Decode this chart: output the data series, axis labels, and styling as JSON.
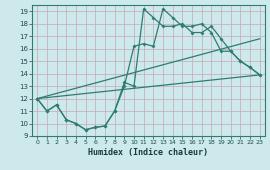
{
  "xlabel": "Humidex (Indice chaleur)",
  "bg_color": "#cee9ec",
  "grid_color": "#b8d8dc",
  "line_color": "#2e7d72",
  "xlim": [
    -0.5,
    23.5
  ],
  "ylim": [
    9,
    19.5
  ],
  "yticks": [
    9,
    10,
    11,
    12,
    13,
    14,
    15,
    16,
    17,
    18,
    19
  ],
  "xticks": [
    0,
    1,
    2,
    3,
    4,
    5,
    6,
    7,
    8,
    9,
    10,
    11,
    12,
    13,
    14,
    15,
    16,
    17,
    18,
    19,
    20,
    21,
    22,
    23
  ],
  "series1_x": [
    0,
    1,
    2,
    3,
    4,
    5,
    6,
    7,
    8,
    9,
    10,
    11,
    12,
    13,
    14,
    15,
    16,
    17,
    18,
    19,
    20,
    21,
    22,
    23
  ],
  "series1_y": [
    12,
    11,
    11.5,
    10.3,
    10,
    9.5,
    9.7,
    9.8,
    11,
    13,
    16.2,
    16.4,
    16.2,
    19.2,
    18.5,
    17.8,
    17.8,
    18.0,
    17.3,
    15.8,
    15.8,
    15.0,
    14.5,
    13.9
  ],
  "series2_x": [
    0,
    1,
    2,
    3,
    4,
    5,
    6,
    7,
    8,
    9,
    10,
    11,
    12,
    13,
    14,
    15,
    16,
    17,
    18,
    19,
    20,
    21,
    22,
    23
  ],
  "series2_y": [
    12,
    11,
    11.5,
    10.3,
    10,
    9.5,
    9.7,
    9.8,
    11,
    13.3,
    13.0,
    19.2,
    18.5,
    17.8,
    17.8,
    18.0,
    17.3,
    17.3,
    17.8,
    16.8,
    15.8,
    15.0,
    14.5,
    13.9
  ],
  "series3_x": [
    0,
    23
  ],
  "series3_y": [
    12,
    13.9
  ],
  "series4_x": [
    0,
    23
  ],
  "series4_y": [
    12,
    16.8
  ]
}
